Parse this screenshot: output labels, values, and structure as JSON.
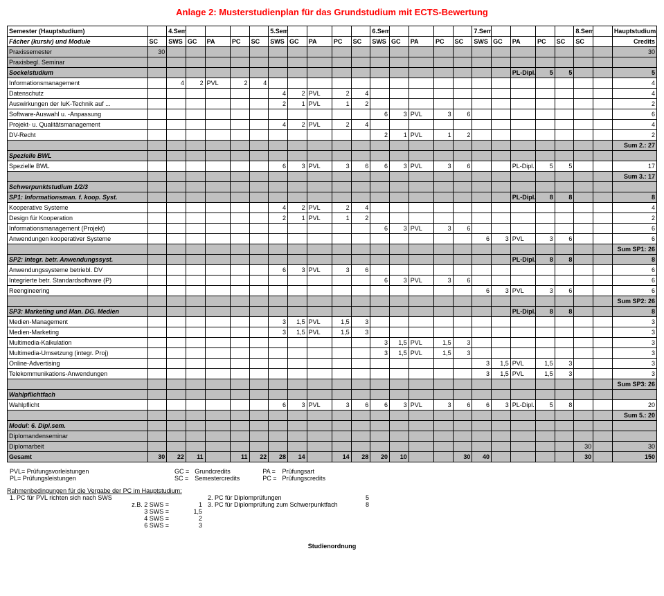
{
  "title": "Anlage 2: Musterstudienplan für das  Grundstudium mit ECTS-Bewertung",
  "hdr": {
    "semRow": [
      "Semester (Hauptstudium)",
      "",
      "4.Sem.",
      "",
      "",
      "",
      "",
      "5.Semester",
      "",
      "",
      "",
      "",
      "6.Semester",
      "",
      "",
      "",
      "",
      "7.Semester",
      "",
      "",
      "",
      "",
      "8.Sem.",
      "",
      "Hauptstudium"
    ],
    "colRow": [
      "Fächer (kursiv) und Module",
      "SC",
      "SWS",
      "GC",
      "PA",
      "PC",
      "SC",
      "SWS",
      "GC",
      "PA",
      "PC",
      "SC",
      "SWS",
      "GC",
      "PA",
      "PC",
      "SC",
      "SWS",
      "GC",
      "PA",
      "PC",
      "SC",
      "SC",
      "",
      "Credits"
    ]
  },
  "rows": [
    {
      "label": "Praxissemester",
      "c": [
        "30",
        "",
        "",
        "",
        "",
        "",
        "",
        "",
        "",
        "",
        "",
        "",
        "",
        "",
        "",
        "",
        "",
        "",
        "",
        "",
        "",
        "",
        "",
        "30"
      ],
      "shade": true
    },
    {
      "label": "Praxisbegl. Seminar",
      "c": [
        "",
        "",
        "",
        "",
        "",
        "",
        "",
        "",
        "",
        "",
        "",
        "",
        "",
        "",
        "",
        "",
        "",
        "",
        "",
        "",
        "",
        "",
        "",
        ""
      ],
      "shade": true
    },
    {
      "label": "Sockelstudium",
      "italic": true,
      "c": [
        "",
        "",
        "",
        "",
        "",
        "",
        "",
        "",
        "",
        "",
        "",
        "",
        "",
        "",
        "",
        "",
        "",
        "",
        "PL-Dipl.",
        "5",
        "5",
        "",
        "",
        "5"
      ],
      "shade": true,
      "bold": true
    },
    {
      "label": "Informationsmanagement",
      "c": [
        "",
        "4",
        "2",
        "PVL",
        "2",
        "4",
        "",
        "",
        "",
        "",
        "",
        "",
        "",
        "",
        "",
        "",
        "",
        "",
        "",
        "",
        "",
        "",
        "",
        "4"
      ]
    },
    {
      "label": "Datenschutz",
      "c": [
        "",
        "",
        "",
        "",
        "",
        "",
        "4",
        "2",
        "PVL",
        "2",
        "4",
        "",
        "",
        "",
        "",
        "",
        "",
        "",
        "",
        "",
        "",
        "",
        "",
        "4"
      ]
    },
    {
      "label": "Auswirkungen der IuK-Technik auf ...",
      "c": [
        "",
        "",
        "",
        "",
        "",
        "",
        "2",
        "1",
        "PVL",
        "1",
        "2",
        "",
        "",
        "",
        "",
        "",
        "",
        "",
        "",
        "",
        "",
        "",
        "",
        "2"
      ]
    },
    {
      "label": "Software-Auswahl u. -Anpassung",
      "c": [
        "",
        "",
        "",
        "",
        "",
        "",
        "",
        "",
        "",
        "",
        "",
        "6",
        "3",
        "PVL",
        "3",
        "6",
        "",
        "",
        "",
        "",
        "",
        "",
        "",
        "6"
      ]
    },
    {
      "label": "Projekt- u. Qualitätsmanagement",
      "c": [
        "",
        "",
        "",
        "",
        "",
        "",
        "4",
        "2",
        "PVL",
        "2",
        "4",
        "",
        "",
        "",
        "",
        "",
        "",
        "",
        "",
        "",
        "",
        "",
        "",
        "4"
      ]
    },
    {
      "label": "DV-Recht",
      "c": [
        "",
        "",
        "",
        "",
        "",
        "",
        "",
        "",
        "",
        "",
        "",
        "2",
        "1",
        "PVL",
        "1",
        "2",
        "",
        "",
        "",
        "",
        "",
        "",
        "",
        "2"
      ]
    },
    {
      "label": "",
      "c": [
        "",
        "",
        "",
        "",
        "",
        "",
        "",
        "",
        "",
        "",
        "",
        "",
        "",
        "",
        "",
        "",
        "",
        "",
        "",
        "",
        "",
        "",
        "",
        "Sum 2.: 27"
      ],
      "shade": true,
      "right": true,
      "bold": true
    },
    {
      "label": "Spezielle BWL",
      "italic": true,
      "bold": true,
      "c": [
        "",
        "",
        "",
        "",
        "",
        "",
        "",
        "",
        "",
        "",
        "",
        "",
        "",
        "",
        "",
        "",
        "",
        "",
        "",
        "",
        "",
        "",
        "",
        ""
      ],
      "shade": true
    },
    {
      "label": "Spezielle BWL",
      "c": [
        "",
        "",
        "",
        "",
        "",
        "",
        "6",
        "3",
        "PVL",
        "3",
        "6",
        "6",
        "3",
        "PVL",
        "3",
        "6",
        "",
        "",
        "PL-Dipl.",
        "5",
        "5",
        "",
        "",
        "17"
      ]
    },
    {
      "label": "",
      "c": [
        "",
        "",
        "",
        "",
        "",
        "",
        "",
        "",
        "",
        "",
        "",
        "",
        "",
        "",
        "",
        "",
        "",
        "",
        "",
        "",
        "",
        "",
        "",
        "Sum 3.: 17"
      ],
      "shade": true,
      "right": true,
      "bold": true
    },
    {
      "label": "Schwerpunktstudium 1/2/3",
      "italic": true,
      "bold": true,
      "c": [
        "",
        "",
        "",
        "",
        "",
        "",
        "",
        "",
        "",
        "",
        "",
        "",
        "",
        "",
        "",
        "",
        "",
        "",
        "",
        "",
        "",
        "",
        "",
        ""
      ],
      "shade": true
    },
    {
      "label": "SP1: Informationsman. f. koop. Syst.",
      "italic": true,
      "bold": true,
      "c": [
        "",
        "",
        "",
        "",
        "",
        "",
        "",
        "",
        "",
        "",
        "",
        "",
        "",
        "",
        "",
        "",
        "",
        "",
        "PL-Dipl.",
        "8",
        "8",
        "",
        "",
        "8"
      ],
      "shade": true
    },
    {
      "label": "Kooperative Systeme",
      "c": [
        "",
        "",
        "",
        "",
        "",
        "",
        "4",
        "2",
        "PVL",
        "2",
        "4",
        "",
        "",
        "",
        "",
        "",
        "",
        "",
        "",
        "",
        "",
        "",
        "",
        "4"
      ]
    },
    {
      "label": "Design für Kooperation",
      "c": [
        "",
        "",
        "",
        "",
        "",
        "",
        "2",
        "1",
        "PVL",
        "1",
        "2",
        "",
        "",
        "",
        "",
        "",
        "",
        "",
        "",
        "",
        "",
        "",
        "",
        "2"
      ]
    },
    {
      "label": "Informationsmanagement (Projekt)",
      "c": [
        "",
        "",
        "",
        "",
        "",
        "",
        "",
        "",
        "",
        "",
        "",
        "6",
        "3",
        "PVL",
        "3",
        "6",
        "",
        "",
        "",
        "",
        "",
        "",
        "",
        "6"
      ]
    },
    {
      "label": "Anwendungen kooperativer Systeme",
      "c": [
        "",
        "",
        "",
        "",
        "",
        "",
        "",
        "",
        "",
        "",
        "",
        "",
        "",
        "",
        "",
        "",
        "6",
        "3",
        "PVL",
        "3",
        "6",
        "",
        "",
        "6"
      ]
    },
    {
      "label": "",
      "c": [
        "",
        "",
        "",
        "",
        "",
        "",
        "",
        "",
        "",
        "",
        "",
        "",
        "",
        "",
        "",
        "",
        "",
        "",
        "",
        "",
        "",
        "",
        "",
        "Sum SP1: 26"
      ],
      "shade": true,
      "right": true,
      "bold": true
    },
    {
      "label": "SP2: Integr. betr. Anwendungssyst.",
      "italic": true,
      "bold": true,
      "c": [
        "",
        "",
        "",
        "",
        "",
        "",
        "",
        "",
        "",
        "",
        "",
        "",
        "",
        "",
        "",
        "",
        "",
        "",
        "PL-Dipl.",
        "8",
        "8",
        "",
        "",
        "8"
      ],
      "shade": true
    },
    {
      "label": "Anwendungssysteme betriebl. DV",
      "c": [
        "",
        "",
        "",
        "",
        "",
        "",
        "6",
        "3",
        "PVL",
        "3",
        "6",
        "",
        "",
        "",
        "",
        "",
        "",
        "",
        "",
        "",
        "",
        "",
        "",
        "6"
      ]
    },
    {
      "label": "Integrierte betr. Standardsoftware (P)",
      "c": [
        "",
        "",
        "",
        "",
        "",
        "",
        "",
        "",
        "",
        "",
        "",
        "6",
        "3",
        "PVL",
        "3",
        "6",
        "",
        "",
        "",
        "",
        "",
        "",
        "",
        "6"
      ]
    },
    {
      "label": "Reengineering",
      "c": [
        "",
        "",
        "",
        "",
        "",
        "",
        "",
        "",
        "",
        "",
        "",
        "",
        "",
        "",
        "",
        "",
        "6",
        "3",
        "PVL",
        "3",
        "6",
        "",
        "",
        "6"
      ]
    },
    {
      "label": "",
      "c": [
        "",
        "",
        "",
        "",
        "",
        "",
        "",
        "",
        "",
        "",
        "",
        "",
        "",
        "",
        "",
        "",
        "",
        "",
        "",
        "",
        "",
        "",
        "",
        "Sum SP2: 26"
      ],
      "shade": true,
      "right": true,
      "bold": true
    },
    {
      "label": "SP3: Marketing und Man. DG. Medien",
      "italic": true,
      "bold": true,
      "c": [
        "",
        "",
        "",
        "",
        "",
        "",
        "",
        "",
        "",
        "",
        "",
        "",
        "",
        "",
        "",
        "",
        "",
        "",
        "PL-Dipl.",
        "8",
        "8",
        "",
        "",
        "8"
      ],
      "shade": true
    },
    {
      "label": "Medien-Management",
      "c": [
        "",
        "",
        "",
        "",
        "",
        "",
        "3",
        "1,5",
        "PVL",
        "1,5",
        "3",
        "",
        "",
        "",
        "",
        "",
        "",
        "",
        "",
        "",
        "",
        "",
        "",
        "3"
      ]
    },
    {
      "label": "Medien-Marketing",
      "c": [
        "",
        "",
        "",
        "",
        "",
        "",
        "3",
        "1,5",
        "PVL",
        "1,5",
        "3",
        "",
        "",
        "",
        "",
        "",
        "",
        "",
        "",
        "",
        "",
        "",
        "",
        "3"
      ]
    },
    {
      "label": "Multimedia-Kalkulation",
      "c": [
        "",
        "",
        "",
        "",
        "",
        "",
        "",
        "",
        "",
        "",
        "",
        "3",
        "1,5",
        "PVL",
        "1,5",
        "3",
        "",
        "",
        "",
        "",
        "",
        "",
        "",
        "3"
      ]
    },
    {
      "label": "Multimedia-Umsetzung (integr. Proj)",
      "c": [
        "",
        "",
        "",
        "",
        "",
        "",
        "",
        "",
        "",
        "",
        "",
        "3",
        "1,5",
        "PVL",
        "1,5",
        "3",
        "",
        "",
        "",
        "",
        "",
        "",
        "",
        "3"
      ]
    },
    {
      "label": "Online-Advertising",
      "c": [
        "",
        "",
        "",
        "",
        "",
        "",
        "",
        "",
        "",
        "",
        "",
        "",
        "",
        "",
        "",
        "",
        "3",
        "1,5",
        "PVL",
        "1,5",
        "3",
        "",
        "",
        "3"
      ]
    },
    {
      "label": "Telekommunikations-Anwendungen",
      "c": [
        "",
        "",
        "",
        "",
        "",
        "",
        "",
        "",
        "",
        "",
        "",
        "",
        "",
        "",
        "",
        "",
        "3",
        "1,5",
        "PVL",
        "1,5",
        "3",
        "",
        "",
        "3"
      ]
    },
    {
      "label": "",
      "c": [
        "",
        "",
        "",
        "",
        "",
        "",
        "",
        "",
        "",
        "",
        "",
        "",
        "",
        "",
        "",
        "",
        "",
        "",
        "",
        "",
        "",
        "",
        "",
        "Sum SP3: 26"
      ],
      "shade": true,
      "right": true,
      "bold": true
    },
    {
      "label": "Wahlpflichtfach",
      "italic": true,
      "bold": true,
      "c": [
        "",
        "",
        "",
        "",
        "",
        "",
        "",
        "",
        "",
        "",
        "",
        "",
        "",
        "",
        "",
        "",
        "",
        "",
        "",
        "",
        "",
        "",
        "",
        ""
      ],
      "shade": true
    },
    {
      "label": "Wahlpflicht",
      "c": [
        "",
        "",
        "",
        "",
        "",
        "",
        "6",
        "3",
        "PVL",
        "3",
        "6",
        "6",
        "3",
        "PVL",
        "3",
        "6",
        "6",
        "3",
        "PL-Dipl.",
        "5",
        "8",
        "",
        "",
        "20"
      ]
    },
    {
      "label": "",
      "c": [
        "",
        "",
        "",
        "",
        "",
        "",
        "",
        "",
        "",
        "",
        "",
        "",
        "",
        "",
        "",
        "",
        "",
        "",
        "",
        "",
        "",
        "",
        "",
        "Sum 5.: 20"
      ],
      "shade": true,
      "right": true,
      "bold": true
    },
    {
      "label": "Modul: 6. Dipl.sem.",
      "italic": true,
      "bold": true,
      "c": [
        "",
        "",
        "",
        "",
        "",
        "",
        "",
        "",
        "",
        "",
        "",
        "",
        "",
        "",
        "",
        "",
        "",
        "",
        "",
        "",
        "",
        "",
        "",
        ""
      ],
      "shade": true
    },
    {
      "label": "Diplomandenseminar",
      "c": [
        "",
        "",
        "",
        "",
        "",
        "",
        "",
        "",
        "",
        "",
        "",
        "",
        "",
        "",
        "",
        "",
        "",
        "",
        "",
        "",
        "",
        "",
        "",
        ""
      ],
      "shade": true
    },
    {
      "label": "Diplomarbeit",
      "c": [
        "",
        "",
        "",
        "",
        "",
        "",
        "",
        "",
        "",
        "",
        "",
        "",
        "",
        "",
        "",
        "",
        "",
        "",
        "",
        "",
        "",
        "30",
        "",
        "30"
      ],
      "shade": true
    },
    {
      "label": "Gesamt",
      "bold": true,
      "c": [
        "30",
        "22",
        "11",
        "",
        "11",
        "22",
        "28",
        "14",
        "",
        "14",
        "28",
        "20",
        "10",
        "",
        "",
        "30",
        "40",
        "",
        "",
        "",
        "",
        "30",
        "",
        "150"
      ],
      "shade": true
    }
  ],
  "legend": {
    "l1": [
      "PVL= Prüfungsvorleistungen",
      "GC =",
      "Grundcredits",
      "PA =",
      "Prüfungsart"
    ],
    "l2": [
      "PL= Prüfungsleistungen",
      "SC =",
      "Semestercredits",
      "PC =",
      "Prüfungscredits"
    ]
  },
  "conditions": {
    "title": "Rahmenbedingungen für die Vergabe der PC im Hauptstudium:",
    "r1": [
      "1. PC für PVL richten sich nach SWS",
      "2. PC für Diplomprüfungen",
      "5"
    ],
    "r2": [
      "z.B. 2 SWS =",
      "1",
      "3. PC für Diplomprüfung zum Schwerpunktfach",
      "8"
    ],
    "r3": [
      "3 SWS =",
      "1,5"
    ],
    "r4": [
      "4 SWS =",
      "2"
    ],
    "r5": [
      "6 SWS =",
      "3"
    ]
  },
  "footer": "Studienordnung"
}
